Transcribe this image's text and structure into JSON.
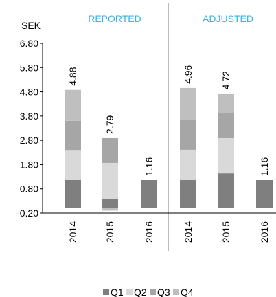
{
  "chart_data": [
    {
      "type": "bar",
      "stacked": true,
      "title": "REPORTED",
      "y_label": "SEK",
      "categories": [
        "2014",
        "2015",
        "2016"
      ],
      "series": [
        {
          "name": "Q1",
          "color": "#7f7f7f",
          "values": [
            1.16,
            0.4,
            1.16
          ]
        },
        {
          "name": "Q2",
          "color": "#d9d9d9",
          "values": [
            1.24,
            1.47,
            null
          ]
        },
        {
          "name": "Q3",
          "color": "#a6a6a6",
          "values": [
            1.2,
            1.02,
            null
          ]
        },
        {
          "name": "Q4",
          "color": "#bfbfbf",
          "values": [
            1.28,
            -0.1,
            null
          ]
        }
      ],
      "totals": [
        4.88,
        2.79,
        1.16
      ],
      "ylim": [
        -0.2,
        6.8
      ],
      "yticks": [
        {
          "value": -0.2,
          "label": "-0.20"
        },
        {
          "value": 0.8,
          "label": "0.80"
        },
        {
          "value": 1.8,
          "label": "1.80"
        },
        {
          "value": 2.8,
          "label": "2.80"
        },
        {
          "value": 3.8,
          "label": "3.80"
        },
        {
          "value": 4.8,
          "label": "4.80"
        },
        {
          "value": 5.8,
          "label": "5.80"
        },
        {
          "value": 6.8,
          "label": "6.80"
        }
      ],
      "legend": "bottom"
    },
    {
      "type": "bar",
      "stacked": true,
      "title": "ADJUSTED",
      "categories": [
        "2014",
        "2015",
        "2016"
      ],
      "series": [
        {
          "color": "#7f7f7f",
          "values": [
            1.16,
            1.44,
            1.16
          ]
        },
        {
          "color": "#d9d9d9",
          "values": [
            1.25,
            1.45,
            null
          ]
        },
        {
          "color": "#a6a6a6",
          "values": [
            1.24,
            1.02,
            null
          ]
        },
        {
          "color": "#bfbfbf",
          "values": [
            1.31,
            0.81,
            null
          ]
        }
      ],
      "totals": [
        4.96,
        4.72,
        1.16
      ]
    }
  ]
}
